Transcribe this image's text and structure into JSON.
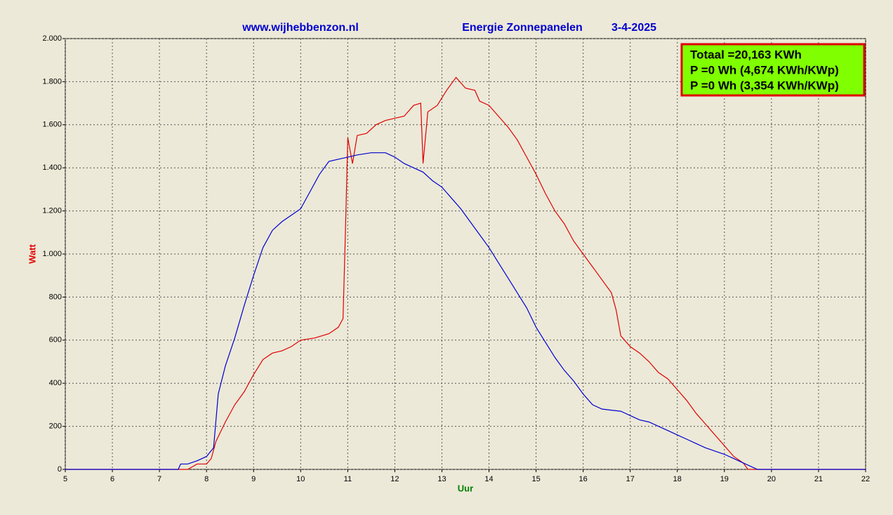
{
  "chart_data": {
    "type": "line",
    "site": "www.wijhebbenzon.nl",
    "title": "Energie Zonnepanelen",
    "date": "3-4-2025",
    "xlabel": "Uur",
    "ylabel": "Watt",
    "annotations": [
      "Totaal =20,163 KWh",
      "P =0  Wh  (4,674 KWh/KWp)",
      "P =0  Wh  (3,354 KWh/KWp)"
    ],
    "xlim": [
      5,
      22
    ],
    "xticks": [
      5,
      6,
      7,
      8,
      9,
      10,
      11,
      12,
      13,
      14,
      15,
      16,
      17,
      18,
      19,
      20,
      21,
      22
    ],
    "ylim": [
      0,
      2000
    ],
    "yticks": [
      {
        "value": 0,
        "label": "0"
      },
      {
        "value": 200,
        "label": "200"
      },
      {
        "value": 400,
        "label": "400"
      },
      {
        "value": 600,
        "label": "600"
      },
      {
        "value": 800,
        "label": "800"
      },
      {
        "value": 1000,
        "label": "1.000"
      },
      {
        "value": 1200,
        "label": "1.200"
      },
      {
        "value": 1400,
        "label": "1.400"
      },
      {
        "value": 1600,
        "label": "1.600"
      },
      {
        "value": 1800,
        "label": "1.800"
      },
      {
        "value": 2000,
        "label": "2.000"
      }
    ],
    "grid": true,
    "series": [
      {
        "color": "#e00000",
        "x": [
          5,
          7.6,
          7.8,
          8.0,
          8.1,
          8.2,
          8.4,
          8.6,
          8.8,
          9.0,
          9.2,
          9.4,
          9.6,
          9.8,
          10.0,
          10.3,
          10.6,
          10.8,
          10.9,
          10.95,
          11.0,
          11.1,
          11.2,
          11.4,
          11.6,
          11.8,
          12.0,
          12.2,
          12.4,
          12.55,
          12.6,
          12.7,
          12.9,
          13.1,
          13.3,
          13.5,
          13.7,
          13.8,
          14.0,
          14.2,
          14.4,
          14.6,
          14.8,
          15.0,
          15.2,
          15.4,
          15.6,
          15.8,
          16.0,
          16.2,
          16.4,
          16.6,
          16.7,
          16.8,
          17.0,
          17.2,
          17.4,
          17.6,
          17.8,
          18.0,
          18.2,
          18.4,
          18.6,
          18.8,
          19.0,
          19.2,
          19.4,
          19.5,
          22
        ],
        "values": [
          0,
          0,
          25,
          25,
          50,
          130,
          220,
          300,
          360,
          440,
          510,
          540,
          550,
          570,
          600,
          610,
          630,
          660,
          700,
          1100,
          1540,
          1420,
          1550,
          1560,
          1600,
          1620,
          1630,
          1640,
          1690,
          1700,
          1420,
          1660,
          1690,
          1760,
          1820,
          1770,
          1760,
          1710,
          1690,
          1640,
          1590,
          1530,
          1450,
          1370,
          1280,
          1200,
          1140,
          1060,
          1000,
          940,
          880,
          820,
          740,
          620,
          570,
          540,
          500,
          450,
          420,
          370,
          320,
          260,
          210,
          160,
          110,
          60,
          30,
          0,
          0
        ]
      },
      {
        "color": "#0000d0",
        "x": [
          5,
          7.4,
          7.45,
          7.6,
          7.8,
          8.0,
          8.15,
          8.25,
          8.4,
          8.6,
          8.8,
          9.0,
          9.2,
          9.4,
          9.6,
          9.8,
          10.0,
          10.2,
          10.4,
          10.6,
          10.8,
          11.0,
          11.2,
          11.5,
          11.8,
          12.0,
          12.2,
          12.4,
          12.6,
          12.8,
          13.0,
          13.2,
          13.4,
          13.6,
          13.8,
          14.0,
          14.2,
          14.4,
          14.6,
          14.8,
          15.0,
          15.2,
          15.4,
          15.6,
          15.8,
          16.0,
          16.2,
          16.4,
          16.6,
          16.8,
          17.0,
          17.2,
          17.4,
          17.6,
          17.8,
          18.0,
          18.2,
          18.4,
          18.6,
          18.8,
          19.0,
          19.2,
          19.4,
          19.6,
          19.7,
          22
        ],
        "values": [
          0,
          0,
          25,
          25,
          40,
          60,
          100,
          350,
          480,
          610,
          760,
          900,
          1030,
          1110,
          1150,
          1180,
          1210,
          1290,
          1370,
          1430,
          1440,
          1450,
          1460,
          1470,
          1470,
          1450,
          1420,
          1400,
          1380,
          1340,
          1310,
          1260,
          1210,
          1150,
          1090,
          1030,
          960,
          890,
          820,
          750,
          660,
          590,
          520,
          460,
          410,
          350,
          300,
          280,
          275,
          270,
          250,
          230,
          220,
          200,
          180,
          160,
          140,
          120,
          100,
          85,
          70,
          50,
          30,
          10,
          0,
          0
        ]
      }
    ]
  }
}
